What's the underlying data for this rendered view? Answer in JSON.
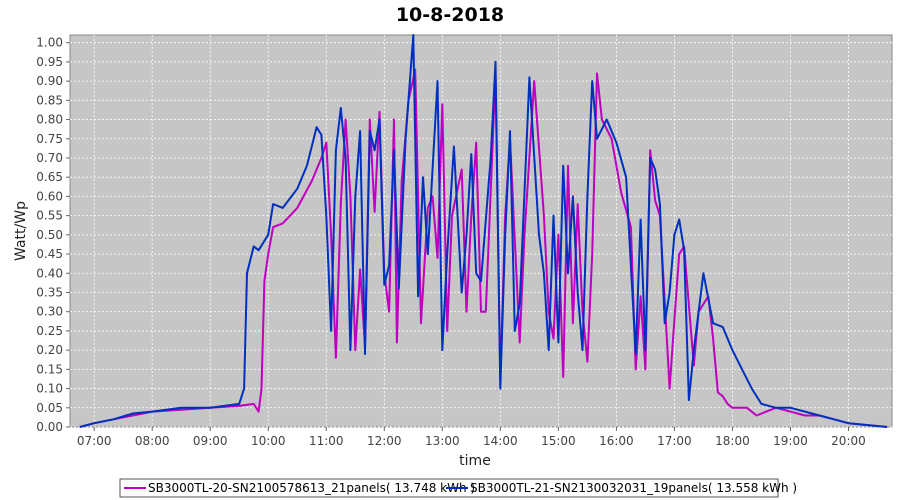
{
  "chart_data": {
    "type": "line",
    "title": "10-8-2018",
    "xlabel": "time",
    "ylabel": "Watt/Wp",
    "ylim": [
      0,
      1.02
    ],
    "xlim": [
      "06:35",
      "20:45"
    ],
    "yticks": [
      "0.00",
      "0.05",
      "0.10",
      "0.15",
      "0.20",
      "0.25",
      "0.30",
      "0.35",
      "0.40",
      "0.45",
      "0.50",
      "0.55",
      "0.60",
      "0.65",
      "0.70",
      "0.75",
      "0.80",
      "0.85",
      "0.90",
      "0.95",
      "1.00"
    ],
    "xticks": [
      "07:00",
      "08:00",
      "09:00",
      "10:00",
      "11:00",
      "12:00",
      "13:00",
      "14:00",
      "15:00",
      "16:00",
      "17:00",
      "18:00",
      "19:00",
      "20:00"
    ],
    "grid": true,
    "legend_position": "bottom",
    "series": [
      {
        "name": "SB3000TL-20-SN2100578613_21panels( 13.748 kWh )",
        "color": "#c000c0",
        "points": [
          [
            "06:45",
            0.0
          ],
          [
            "07:00",
            0.01
          ],
          [
            "07:20",
            0.02
          ],
          [
            "07:40",
            0.03
          ],
          [
            "08:00",
            0.04
          ],
          [
            "08:30",
            0.045
          ],
          [
            "09:00",
            0.05
          ],
          [
            "09:30",
            0.055
          ],
          [
            "09:45",
            0.06
          ],
          [
            "09:50",
            0.04
          ],
          [
            "09:53",
            0.1
          ],
          [
            "09:56",
            0.38
          ],
          [
            "10:00",
            0.45
          ],
          [
            "10:05",
            0.52
          ],
          [
            "10:15",
            0.53
          ],
          [
            "10:30",
            0.57
          ],
          [
            "10:45",
            0.64
          ],
          [
            "10:55",
            0.7
          ],
          [
            "11:00",
            0.74
          ],
          [
            "11:05",
            0.5
          ],
          [
            "11:10",
            0.18
          ],
          [
            "11:15",
            0.58
          ],
          [
            "11:20",
            0.8
          ],
          [
            "11:25",
            0.6
          ],
          [
            "11:30",
            0.2
          ],
          [
            "11:35",
            0.41
          ],
          [
            "11:40",
            0.21
          ],
          [
            "11:45",
            0.8
          ],
          [
            "11:50",
            0.56
          ],
          [
            "11:55",
            0.82
          ],
          [
            "12:00",
            0.4
          ],
          [
            "12:05",
            0.3
          ],
          [
            "12:10",
            0.8
          ],
          [
            "12:13",
            0.22
          ],
          [
            "12:18",
            0.64
          ],
          [
            "12:25",
            0.85
          ],
          [
            "12:32",
            0.93
          ],
          [
            "12:38",
            0.27
          ],
          [
            "12:45",
            0.57
          ],
          [
            "12:50",
            0.6
          ],
          [
            "12:55",
            0.44
          ],
          [
            "13:00",
            0.84
          ],
          [
            "13:05",
            0.25
          ],
          [
            "13:10",
            0.55
          ],
          [
            "13:20",
            0.67
          ],
          [
            "13:25",
            0.3
          ],
          [
            "13:30",
            0.55
          ],
          [
            "13:35",
            0.74
          ],
          [
            "13:40",
            0.3
          ],
          [
            "13:45",
            0.3
          ],
          [
            "13:55",
            0.92
          ],
          [
            "14:00",
            0.12
          ],
          [
            "14:05",
            0.55
          ],
          [
            "14:10",
            0.75
          ],
          [
            "14:20",
            0.22
          ],
          [
            "14:25",
            0.5
          ],
          [
            "14:35",
            0.9
          ],
          [
            "14:45",
            0.55
          ],
          [
            "14:50",
            0.3
          ],
          [
            "14:55",
            0.23
          ],
          [
            "15:00",
            0.5
          ],
          [
            "15:05",
            0.13
          ],
          [
            "15:10",
            0.68
          ],
          [
            "15:15",
            0.27
          ],
          [
            "15:20",
            0.58
          ],
          [
            "15:25",
            0.3
          ],
          [
            "15:30",
            0.17
          ],
          [
            "15:35",
            0.45
          ],
          [
            "15:40",
            0.92
          ],
          [
            "15:45",
            0.8
          ],
          [
            "15:55",
            0.75
          ],
          [
            "16:05",
            0.61
          ],
          [
            "16:15",
            0.52
          ],
          [
            "16:20",
            0.15
          ],
          [
            "16:25",
            0.34
          ],
          [
            "16:30",
            0.15
          ],
          [
            "16:35",
            0.72
          ],
          [
            "16:40",
            0.59
          ],
          [
            "16:45",
            0.55
          ],
          [
            "16:50",
            0.33
          ],
          [
            "16:55",
            0.1
          ],
          [
            "17:00",
            0.28
          ],
          [
            "17:05",
            0.45
          ],
          [
            "17:10",
            0.47
          ],
          [
            "17:20",
            0.16
          ],
          [
            "17:25",
            0.3
          ],
          [
            "17:35",
            0.34
          ],
          [
            "17:40",
            0.23
          ],
          [
            "17:45",
            0.09
          ],
          [
            "17:50",
            0.08
          ],
          [
            "17:55",
            0.06
          ],
          [
            "18:00",
            0.05
          ],
          [
            "18:15",
            0.05
          ],
          [
            "18:25",
            0.03
          ],
          [
            "18:35",
            0.04
          ],
          [
            "18:45",
            0.05
          ],
          [
            "19:00",
            0.04
          ],
          [
            "19:15",
            0.03
          ],
          [
            "19:30",
            0.03
          ],
          [
            "19:45",
            0.02
          ],
          [
            "20:00",
            0.01
          ],
          [
            "20:40",
            0.0
          ]
        ]
      },
      {
        "name": "SB3000TL-21-SN2130032031_19panels( 13.558 kWh )",
        "color": "#0030c0",
        "points": [
          [
            "06:45",
            0.0
          ],
          [
            "07:00",
            0.01
          ],
          [
            "07:20",
            0.02
          ],
          [
            "07:40",
            0.035
          ],
          [
            "08:00",
            0.04
          ],
          [
            "08:30",
            0.05
          ],
          [
            "09:00",
            0.05
          ],
          [
            "09:30",
            0.06
          ],
          [
            "09:35",
            0.1
          ],
          [
            "09:38",
            0.4
          ],
          [
            "09:45",
            0.47
          ],
          [
            "09:50",
            0.46
          ],
          [
            "10:00",
            0.5
          ],
          [
            "10:05",
            0.58
          ],
          [
            "10:15",
            0.57
          ],
          [
            "10:30",
            0.62
          ],
          [
            "10:40",
            0.68
          ],
          [
            "10:50",
            0.78
          ],
          [
            "10:55",
            0.76
          ],
          [
            "11:00",
            0.55
          ],
          [
            "11:05",
            0.25
          ],
          [
            "11:10",
            0.72
          ],
          [
            "11:15",
            0.83
          ],
          [
            "11:20",
            0.7
          ],
          [
            "11:25",
            0.2
          ],
          [
            "11:30",
            0.6
          ],
          [
            "11:35",
            0.77
          ],
          [
            "11:40",
            0.19
          ],
          [
            "11:45",
            0.77
          ],
          [
            "11:50",
            0.72
          ],
          [
            "11:55",
            0.8
          ],
          [
            "12:00",
            0.37
          ],
          [
            "12:05",
            0.42
          ],
          [
            "12:10",
            0.72
          ],
          [
            "12:15",
            0.36
          ],
          [
            "12:22",
            0.75
          ],
          [
            "12:30",
            1.02
          ],
          [
            "12:35",
            0.34
          ],
          [
            "12:40",
            0.65
          ],
          [
            "12:45",
            0.45
          ],
          [
            "12:55",
            0.9
          ],
          [
            "13:00",
            0.2
          ],
          [
            "13:05",
            0.45
          ],
          [
            "13:12",
            0.73
          ],
          [
            "13:20",
            0.35
          ],
          [
            "13:25",
            0.5
          ],
          [
            "13:30",
            0.71
          ],
          [
            "13:35",
            0.4
          ],
          [
            "13:40",
            0.38
          ],
          [
            "13:50",
            0.7
          ],
          [
            "13:55",
            0.95
          ],
          [
            "14:00",
            0.1
          ],
          [
            "14:05",
            0.5
          ],
          [
            "14:10",
            0.77
          ],
          [
            "14:15",
            0.25
          ],
          [
            "14:20",
            0.32
          ],
          [
            "14:30",
            0.91
          ],
          [
            "14:40",
            0.5
          ],
          [
            "14:45",
            0.4
          ],
          [
            "14:50",
            0.2
          ],
          [
            "14:55",
            0.55
          ],
          [
            "15:00",
            0.22
          ],
          [
            "15:05",
            0.68
          ],
          [
            "15:10",
            0.4
          ],
          [
            "15:15",
            0.6
          ],
          [
            "15:20",
            0.35
          ],
          [
            "15:25",
            0.2
          ],
          [
            "15:30",
            0.6
          ],
          [
            "15:35",
            0.9
          ],
          [
            "15:40",
            0.75
          ],
          [
            "15:50",
            0.8
          ],
          [
            "16:00",
            0.74
          ],
          [
            "16:10",
            0.65
          ],
          [
            "16:20",
            0.19
          ],
          [
            "16:25",
            0.54
          ],
          [
            "16:30",
            0.2
          ],
          [
            "16:35",
            0.7
          ],
          [
            "16:40",
            0.67
          ],
          [
            "16:45",
            0.58
          ],
          [
            "16:50",
            0.27
          ],
          [
            "16:55",
            0.35
          ],
          [
            "17:00",
            0.5
          ],
          [
            "17:05",
            0.54
          ],
          [
            "17:10",
            0.46
          ],
          [
            "17:15",
            0.07
          ],
          [
            "17:20",
            0.2
          ],
          [
            "17:30",
            0.4
          ],
          [
            "17:40",
            0.27
          ],
          [
            "17:50",
            0.26
          ],
          [
            "18:00",
            0.2
          ],
          [
            "18:10",
            0.15
          ],
          [
            "18:20",
            0.1
          ],
          [
            "18:30",
            0.06
          ],
          [
            "18:45",
            0.05
          ],
          [
            "19:00",
            0.05
          ],
          [
            "19:15",
            0.04
          ],
          [
            "19:30",
            0.03
          ],
          [
            "19:45",
            0.02
          ],
          [
            "20:00",
            0.01
          ],
          [
            "20:40",
            0.0
          ]
        ]
      }
    ]
  }
}
